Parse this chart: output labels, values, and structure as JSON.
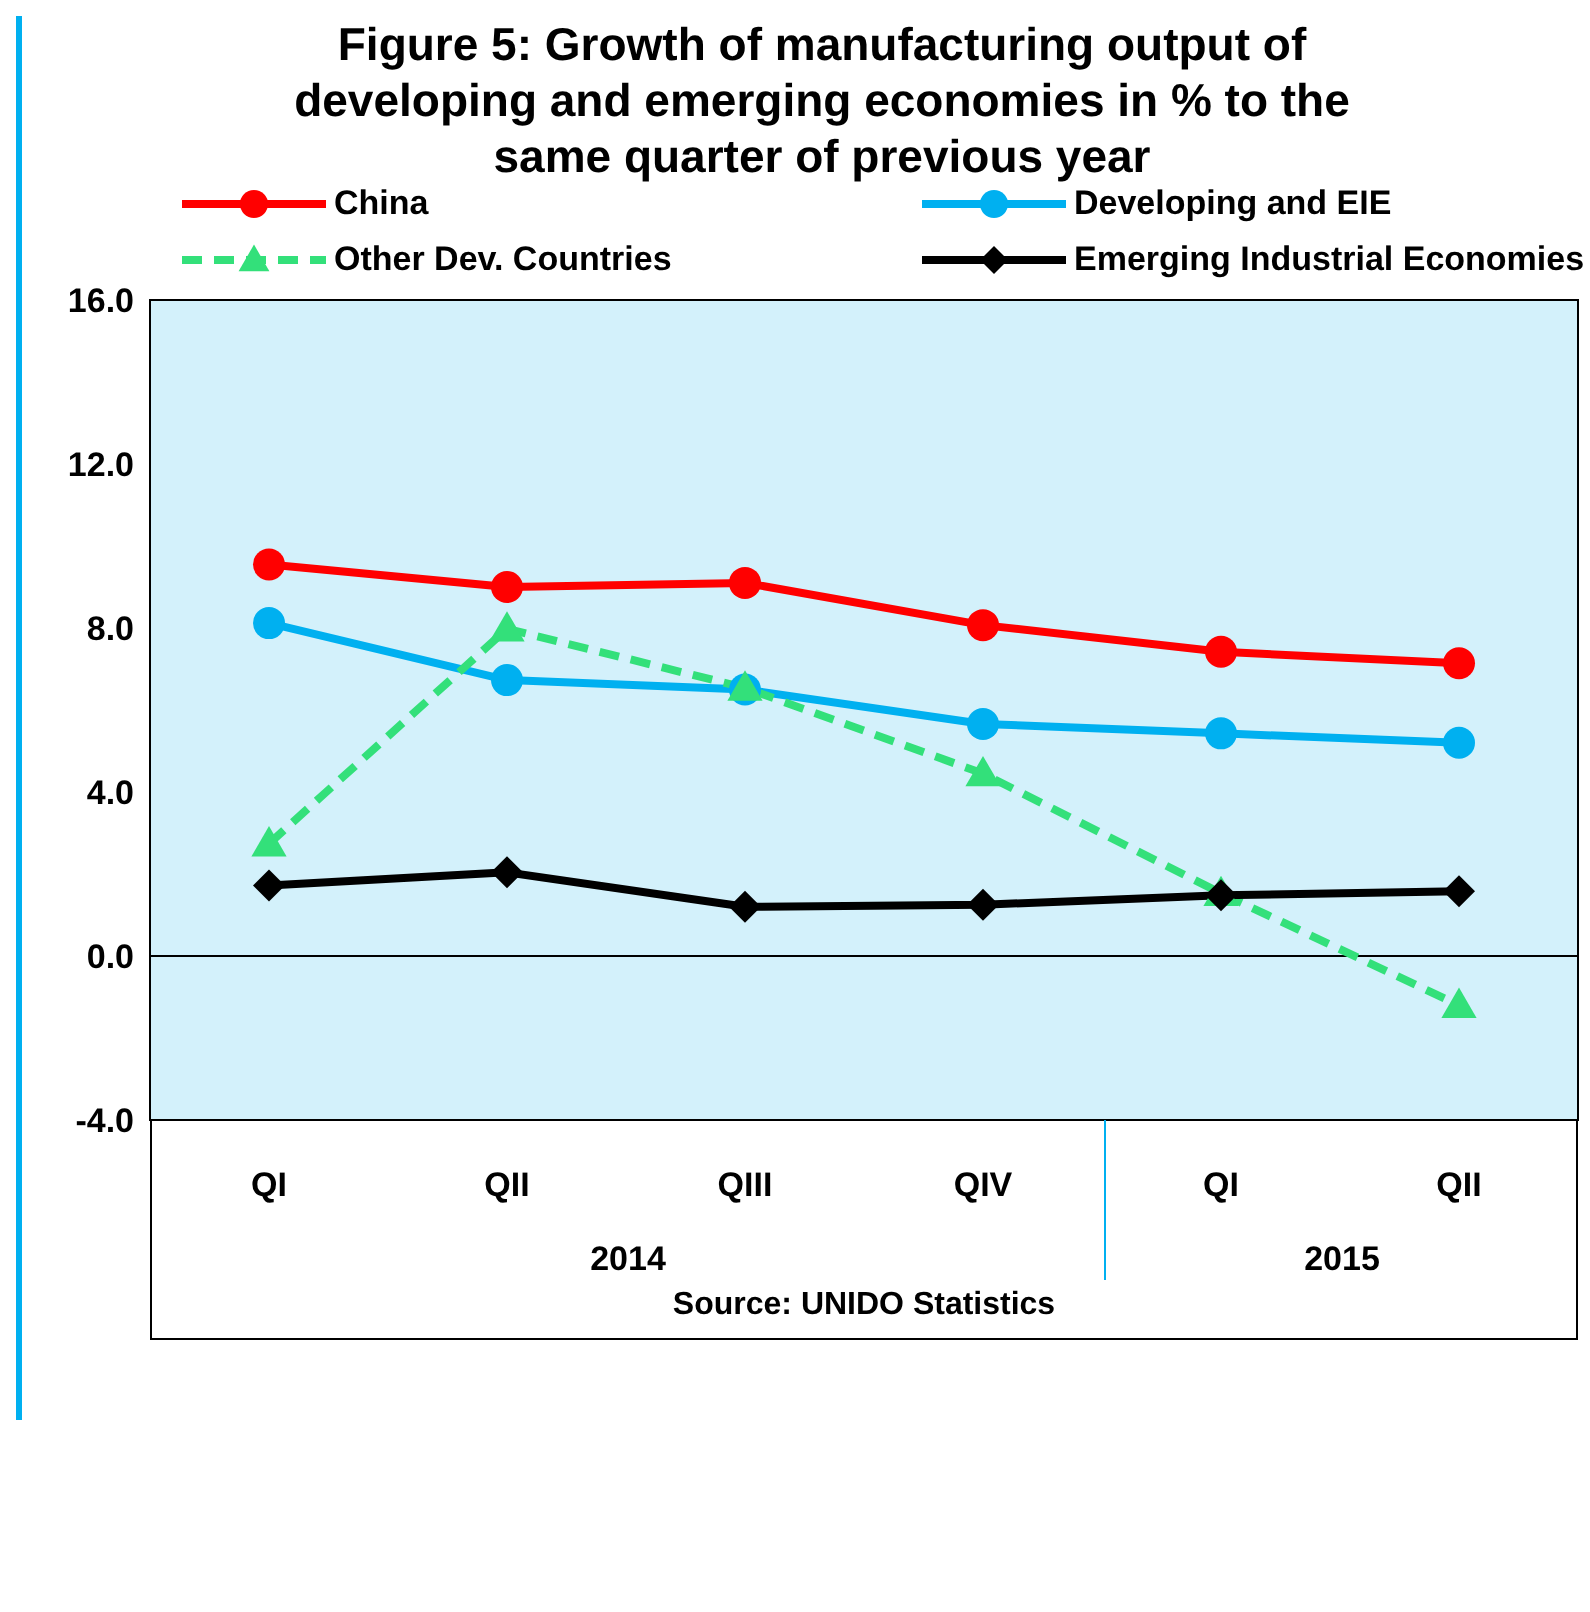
{
  "chart_data": {
    "type": "line",
    "title": "Figure 5: Growth of manufacturing output of developing  and emerging economies in % to the same quarter of previous year",
    "categories": [
      "QI",
      "QII",
      "QIII",
      "QIV",
      "QI",
      "QII"
    ],
    "series": [
      {
        "name": "China",
        "color": "#ff0000",
        "marker": "circle",
        "line_style": "solid",
        "values": [
          9.55,
          9.0,
          9.1,
          8.07,
          7.42,
          7.14
        ]
      },
      {
        "name": "Developing and EIE",
        "color": "#00b0f0",
        "marker": "circle",
        "line_style": "solid",
        "values": [
          8.12,
          6.73,
          6.5,
          5.66,
          5.43,
          5.2
        ]
      },
      {
        "name": "Other Dev. Countries",
        "color": "#33e07a",
        "marker": "triangle",
        "line_style": "dashed",
        "values": [
          2.74,
          7.98,
          6.54,
          4.45,
          1.53,
          -1.2
        ]
      },
      {
        "name": "Emerging Industrial Economies",
        "color": "#000000",
        "marker": "diamond",
        "line_style": "solid",
        "values": [
          1.72,
          2.04,
          1.2,
          1.25,
          1.48,
          1.58
        ]
      }
    ],
    "ylim": [
      -4,
      16
    ],
    "yticks": [
      {
        "value": -4,
        "label": "-4.0"
      },
      {
        "value": 0,
        "label": "0.0"
      },
      {
        "value": 4,
        "label": "4.0"
      },
      {
        "value": 8,
        "label": "8.0"
      },
      {
        "value": 12,
        "label": "12.0"
      },
      {
        "value": 16,
        "label": "16.0"
      }
    ],
    "legend": "top",
    "annotations": [
      "2014",
      "2015",
      "Source: UNIDO Statistics"
    ]
  }
}
